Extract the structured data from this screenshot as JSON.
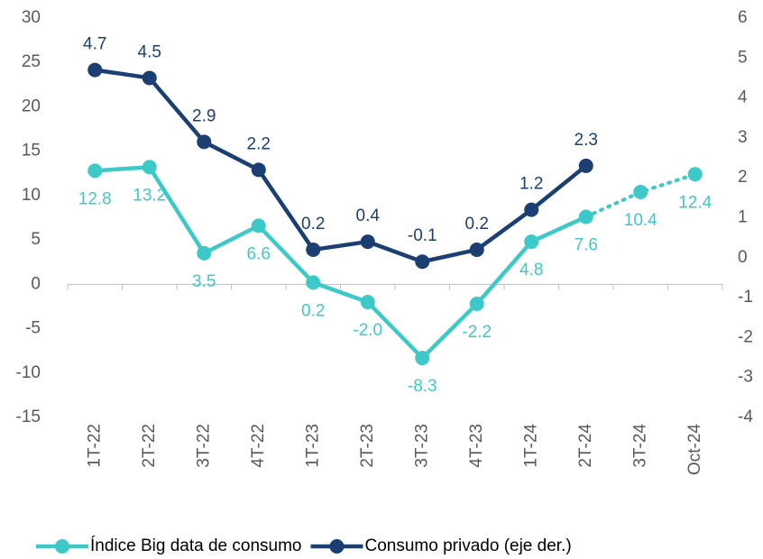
{
  "chart_data": {
    "type": "line",
    "categories": [
      "1T-22",
      "2T-22",
      "3T-22",
      "4T-22",
      "1T-23",
      "2T-23",
      "3T-23",
      "4T-23",
      "1T-24",
      "2T-24",
      "3T-24",
      "Oct-24"
    ],
    "series": [
      {
        "name": "Índice Big data de consumo",
        "color": "#3ec9c9",
        "axis": "y",
        "values": [
          12.8,
          13.2,
          3.5,
          6.6,
          0.2,
          -2.0,
          -8.3,
          -2.2,
          4.8,
          7.6,
          10.4,
          12.4
        ],
        "value_labels": [
          "12.8",
          "13.2",
          "3.5",
          "6.6",
          "0.2",
          "-2.0",
          "-8.3",
          "-2.2",
          "4.8",
          "7.6",
          "10.4",
          "12.4"
        ],
        "dotted_from": 9
      },
      {
        "name": "Consumo privado (eje der.)",
        "color": "#1b3f73",
        "axis": "y2",
        "values": [
          4.7,
          4.5,
          2.9,
          2.2,
          0.2,
          0.4,
          -0.1,
          0.2,
          1.2,
          2.3,
          null,
          null
        ],
        "value_labels": [
          "4.7",
          "4.5",
          "2.9",
          "2.2",
          "0.2",
          "0.4",
          "-0.1",
          "0.2",
          "1.2",
          "2.3",
          null,
          null
        ]
      }
    ],
    "ylim": [
      -15,
      30
    ],
    "yticks": [
      -15,
      -10,
      -5,
      0,
      5,
      10,
      15,
      20,
      25,
      30
    ],
    "y2lim": [
      -4,
      6
    ],
    "y2ticks": [
      -4,
      -3,
      -2,
      -1,
      0,
      1,
      2,
      3,
      4,
      5,
      6
    ],
    "legend": "bottom"
  }
}
